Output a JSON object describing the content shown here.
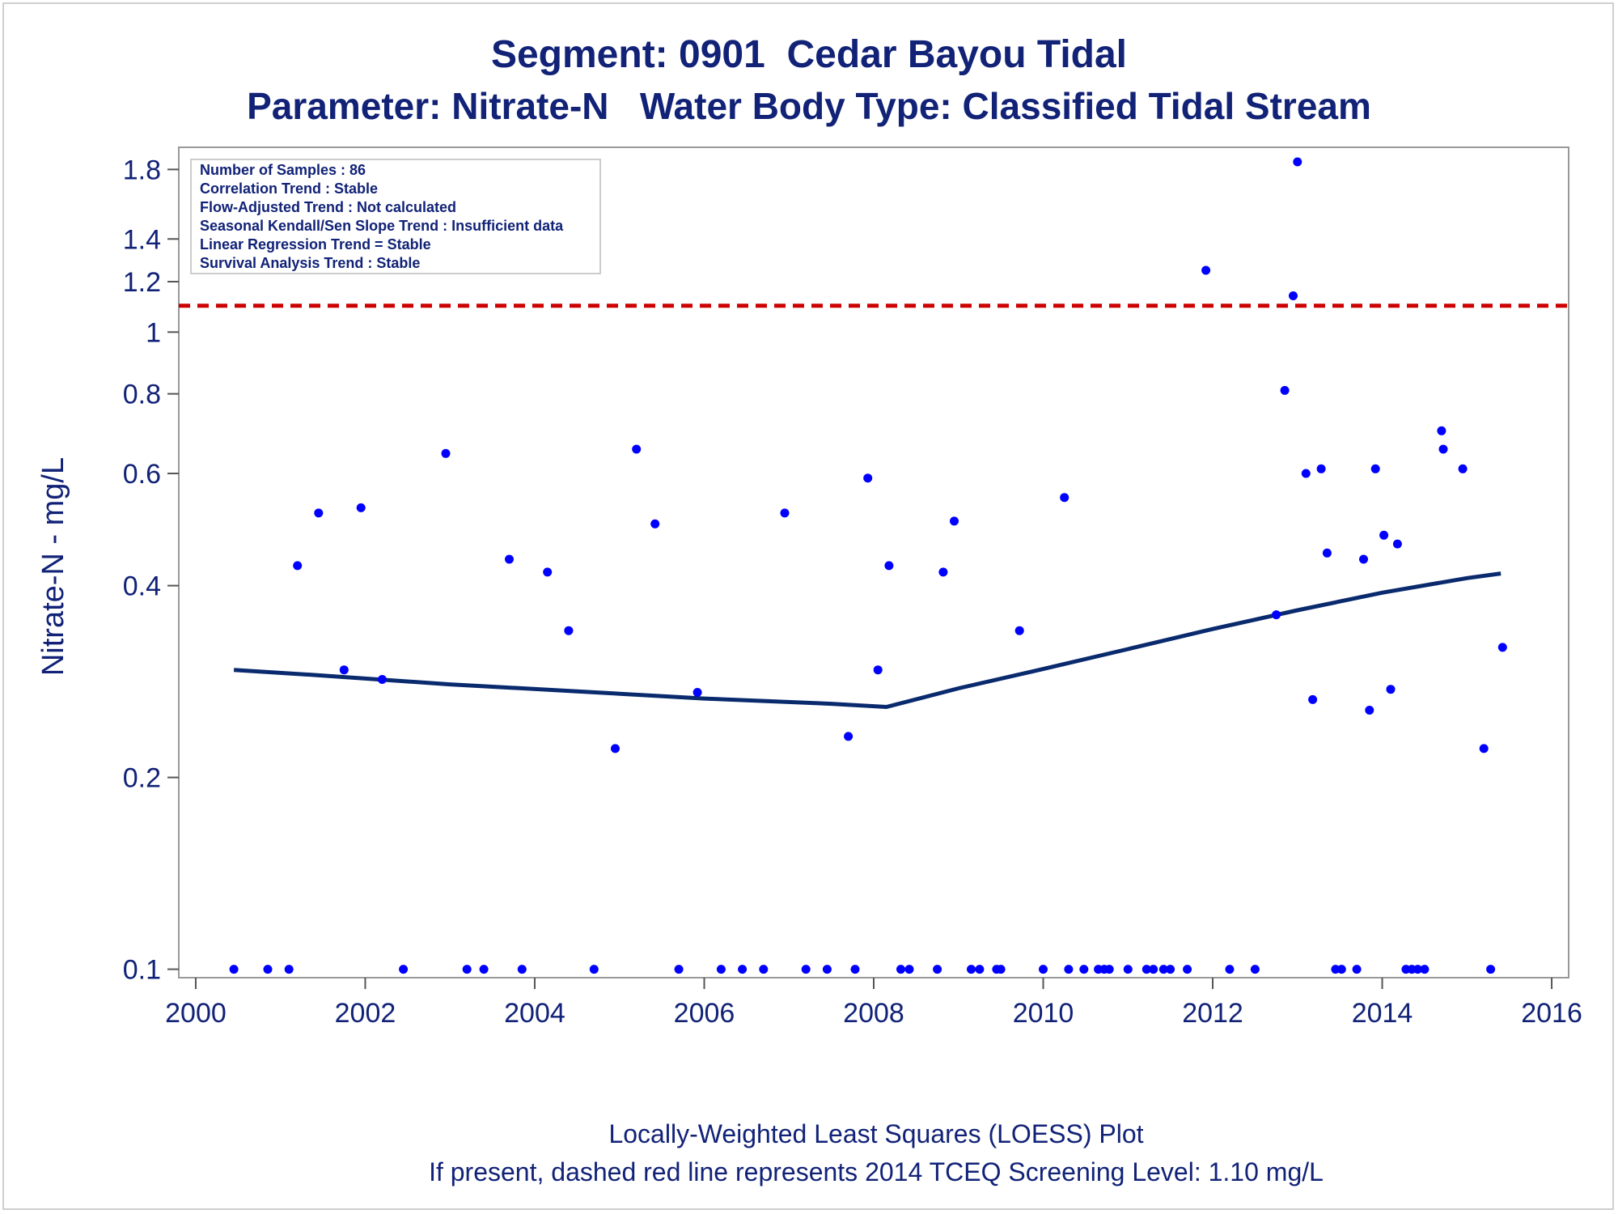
{
  "colors": {
    "text": "#112277",
    "points": "#0000ff",
    "loess": "#0a2a6e",
    "screening": "#cc0000",
    "frame": "#999999"
  },
  "chart_data": {
    "type": "scatter",
    "title": "Segment: 0901  Cedar Bayou Tidal",
    "subtitle": "Parameter: Nitrate-N   Water Body Type: Classified Tidal Stream",
    "xlabel": "",
    "ylabel": "Nitrate-N - mg/L",
    "footnotes": [
      "Locally-Weighted Least Squares (LOESS) Plot",
      "If present, dashed red line represents 2014 TCEQ Screening Level: 1.10 mg/L"
    ],
    "y_scale": "log",
    "xlim": [
      1999.8,
      2016.2
    ],
    "ylim": [
      0.097,
      1.95
    ],
    "x_ticks": [
      2000,
      2002,
      2004,
      2006,
      2008,
      2010,
      2012,
      2014,
      2016
    ],
    "y_ticks": [
      0.1,
      0.2,
      0.4,
      0.6,
      0.8,
      1,
      1.2,
      1.4,
      1.8
    ],
    "grid": false,
    "info_box": [
      "Number of Samples : 86",
      "Correlation Trend : Stable",
      "Flow-Adjusted Trend : Not calculated",
      "Seasonal Kendall/Sen Slope Trend : Insufficient data",
      "Linear Regression Trend = Stable",
      "Survival Analysis Trend : Stable"
    ],
    "screening_level": {
      "y": 1.1,
      "style": "dashed"
    },
    "series": [
      {
        "name": "",
        "type": "scatter",
        "points": [
          [
            2000.45,
            0.1
          ],
          [
            2000.85,
            0.1
          ],
          [
            2001.1,
            0.1
          ],
          [
            2001.2,
            0.43
          ],
          [
            2001.45,
            0.52
          ],
          [
            2001.75,
            0.295
          ],
          [
            2001.95,
            0.53
          ],
          [
            2002.2,
            0.285
          ],
          [
            2002.45,
            0.1
          ],
          [
            2002.95,
            0.645
          ],
          [
            2003.2,
            0.1
          ],
          [
            2003.4,
            0.1
          ],
          [
            2003.7,
            0.44
          ],
          [
            2003.85,
            0.1
          ],
          [
            2004.15,
            0.42
          ],
          [
            2004.4,
            0.34
          ],
          [
            2004.7,
            0.1
          ],
          [
            2004.95,
            0.222
          ],
          [
            2005.2,
            0.655
          ],
          [
            2005.42,
            0.5
          ],
          [
            2005.7,
            0.1
          ],
          [
            2005.92,
            0.272
          ],
          [
            2006.2,
            0.1
          ],
          [
            2006.45,
            0.1
          ],
          [
            2006.7,
            0.1
          ],
          [
            2006.95,
            0.52
          ],
          [
            2007.2,
            0.1
          ],
          [
            2007.45,
            0.1
          ],
          [
            2007.7,
            0.232
          ],
          [
            2007.78,
            0.1
          ],
          [
            2007.93,
            0.59
          ],
          [
            2008.05,
            0.295
          ],
          [
            2008.18,
            0.43
          ],
          [
            2008.32,
            0.1
          ],
          [
            2008.42,
            0.1
          ],
          [
            2008.75,
            0.1
          ],
          [
            2008.82,
            0.42
          ],
          [
            2008.95,
            0.505
          ],
          [
            2009.15,
            0.1
          ],
          [
            2009.25,
            0.1
          ],
          [
            2009.45,
            0.1
          ],
          [
            2009.5,
            0.1
          ],
          [
            2009.72,
            0.34
          ],
          [
            2010.0,
            0.1
          ],
          [
            2010.25,
            0.55
          ],
          [
            2010.3,
            0.1
          ],
          [
            2010.48,
            0.1
          ],
          [
            2010.65,
            0.1
          ],
          [
            2010.72,
            0.1
          ],
          [
            2010.78,
            0.1
          ],
          [
            2011.0,
            0.1
          ],
          [
            2011.22,
            0.1
          ],
          [
            2011.3,
            0.1
          ],
          [
            2011.42,
            0.1
          ],
          [
            2011.5,
            0.1
          ],
          [
            2011.7,
            0.1
          ],
          [
            2011.92,
            1.25
          ],
          [
            2012.2,
            0.1
          ],
          [
            2012.5,
            0.1
          ],
          [
            2012.75,
            0.36
          ],
          [
            2012.85,
            0.81
          ],
          [
            2012.95,
            1.14
          ],
          [
            2013.0,
            1.85
          ],
          [
            2013.1,
            0.6
          ],
          [
            2013.18,
            0.265
          ],
          [
            2013.28,
            0.61
          ],
          [
            2013.35,
            0.45
          ],
          [
            2013.45,
            0.1
          ],
          [
            2013.52,
            0.1
          ],
          [
            2013.7,
            0.1
          ],
          [
            2013.78,
            0.44
          ],
          [
            2013.85,
            0.255
          ],
          [
            2013.92,
            0.61
          ],
          [
            2014.02,
            0.48
          ],
          [
            2014.1,
            0.275
          ],
          [
            2014.18,
            0.465
          ],
          [
            2014.28,
            0.1
          ],
          [
            2014.35,
            0.1
          ],
          [
            2014.42,
            0.1
          ],
          [
            2014.5,
            0.1
          ],
          [
            2014.7,
            0.7
          ],
          [
            2014.72,
            0.655
          ],
          [
            2014.95,
            0.61
          ],
          [
            2015.2,
            0.222
          ],
          [
            2015.28,
            0.1
          ],
          [
            2015.42,
            0.32
          ]
        ]
      },
      {
        "name": "",
        "type": "line",
        "points": [
          [
            2000.45,
            0.295
          ],
          [
            2001.5,
            0.289
          ],
          [
            2003.0,
            0.28
          ],
          [
            2004.5,
            0.273
          ],
          [
            2006.0,
            0.266
          ],
          [
            2007.5,
            0.261
          ],
          [
            2008.15,
            0.258
          ],
          [
            2009.0,
            0.276
          ],
          [
            2010.0,
            0.296
          ],
          [
            2011.0,
            0.318
          ],
          [
            2012.0,
            0.342
          ],
          [
            2013.0,
            0.366
          ],
          [
            2014.0,
            0.39
          ],
          [
            2015.0,
            0.411
          ],
          [
            2015.4,
            0.418
          ]
        ]
      }
    ]
  }
}
